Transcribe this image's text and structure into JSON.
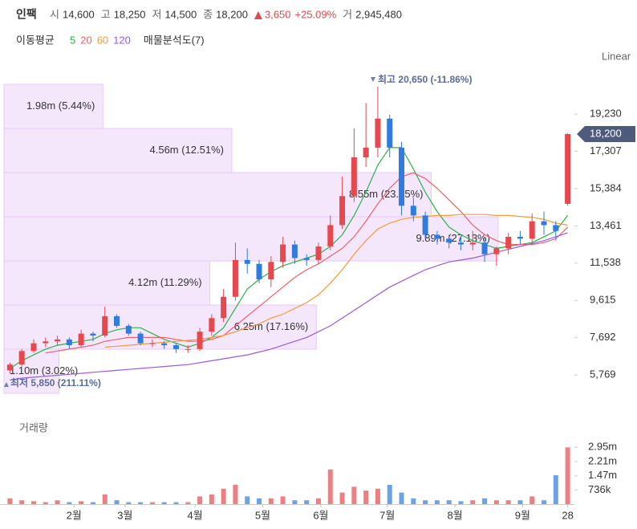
{
  "chart_data": {
    "type": "candlestick",
    "title": "인팩",
    "quote": [
      {
        "label": "시",
        "value": "14,600"
      },
      {
        "label": "고",
        "value": "18,250"
      },
      {
        "label": "저",
        "value": "14,500"
      },
      {
        "label": "종",
        "value": "18,200"
      }
    ],
    "change": "3,650",
    "change_pct": "+25.09%",
    "volume_label": "거",
    "volume_total": "2,945,480",
    "ma_label": "이동평균",
    "profile_label": "매물분석도(7)",
    "scale": "Linear",
    "xlim": [
      -0.5,
      47.5
    ],
    "xticks": [
      {
        "value": 5.4,
        "label": "2월"
      },
      {
        "value": 9.7,
        "label": "3월"
      },
      {
        "value": 15.6,
        "label": "4월"
      },
      {
        "value": 21.3,
        "label": "5월"
      },
      {
        "value": 26.2,
        "label": "6월"
      },
      {
        "value": 31.8,
        "label": "7월"
      },
      {
        "value": 37.5,
        "label": "8월"
      },
      {
        "value": 43.2,
        "label": "9월"
      },
      {
        "value": 47,
        "label": "28"
      }
    ],
    "ylim": [
      4816,
      21186
    ],
    "yticks": [
      {
        "value": 5769,
        "label": "5,769"
      },
      {
        "value": 7692,
        "label": "7,692"
      },
      {
        "value": 9615,
        "label": "9,615"
      },
      {
        "value": 11538,
        "label": "11,538"
      },
      {
        "value": 13461,
        "label": "13,461"
      },
      {
        "value": 15384,
        "label": "15,384"
      },
      {
        "value": 17307,
        "label": "17,307"
      },
      {
        "value": 19230,
        "label": "19,230"
      }
    ],
    "up_color": "#e5484d",
    "down_color": "#2f7be0",
    "open": [
      6000,
      6300,
      7000,
      7400,
      7500,
      7600,
      7300,
      7900,
      7800,
      8800,
      8300,
      7900,
      7400,
      7400,
      7300,
      7100,
      7100,
      8000,
      8700,
      9800,
      11700,
      11500,
      10700,
      11600,
      12500,
      11800,
      11700,
      12400,
      13500,
      15000,
      17000,
      17500,
      19000,
      17500,
      14500,
      14000,
      13000,
      12800,
      12600,
      12500,
      12600,
      12000,
      12300,
      12900,
      12800,
      13700,
      13500,
      14600
    ],
    "high": [
      6400,
      7100,
      7600,
      7700,
      7800,
      7700,
      8100,
      8000,
      9300,
      8900,
      8400,
      8000,
      7600,
      7500,
      7400,
      7300,
      8200,
      8900,
      10200,
      12600,
      12300,
      11700,
      11900,
      12900,
      12700,
      12000,
      12600,
      14000,
      16000,
      18500,
      19800,
      20650,
      19200,
      17800,
      14900,
      14200,
      13200,
      13000,
      12900,
      13200,
      12900,
      12400,
      13100,
      13200,
      14100,
      14200,
      13700,
      18250
    ],
    "low": [
      5850,
      6200,
      6900,
      7200,
      7300,
      7100,
      7200,
      7500,
      7700,
      8200,
      7800,
      7300,
      7200,
      7100,
      6900,
      6900,
      7000,
      7800,
      8500,
      9600,
      11000,
      10500,
      10300,
      11300,
      11500,
      11400,
      11500,
      12200,
      13300,
      14700,
      16500,
      17000,
      17000,
      14000,
      13700,
      12800,
      12500,
      12300,
      12200,
      12200,
      11600,
      11400,
      12000,
      12500,
      12500,
      13000,
      12700,
      14500
    ],
    "close": [
      6300,
      7000,
      7400,
      7500,
      7600,
      7300,
      7900,
      7800,
      8800,
      8300,
      7900,
      7400,
      7400,
      7300,
      7100,
      7100,
      8000,
      8700,
      9800,
      11700,
      11500,
      10700,
      11600,
      12500,
      11800,
      11700,
      12400,
      13500,
      15000,
      17000,
      17500,
      19000,
      17500,
      14500,
      14000,
      13000,
      12800,
      12600,
      12500,
      12600,
      12000,
      12300,
      12900,
      12800,
      13700,
      13500,
      13200,
      18200
    ],
    "ma": [
      {
        "name": "5",
        "color": "#2bb24c",
        "values": [
          6100,
          6500,
          6800,
          7100,
          7300,
          7400,
          7500,
          7600,
          7900,
          8100,
          8200,
          8200,
          7900,
          7600,
          7400,
          7200,
          7400,
          7700,
          8200,
          9200,
          10200,
          10700,
          11100,
          11400,
          11600,
          11800,
          12000,
          12400,
          13000,
          14000,
          15200,
          16600,
          17500,
          17500,
          16400,
          15200,
          14200,
          13400,
          13000,
          12700,
          12500,
          12300,
          12400,
          12500,
          12600,
          12900,
          13200,
          14000
        ]
      },
      {
        "name": "20",
        "color": "#f0606a",
        "values": [
          null,
          null,
          null,
          6900,
          7000,
          7100,
          7200,
          7300,
          7500,
          7600,
          7700,
          7700,
          7700,
          7700,
          7600,
          7500,
          7500,
          7600,
          7800,
          8300,
          8800,
          9300,
          9800,
          10300,
          10800,
          11200,
          11500,
          11900,
          12300,
          12900,
          13700,
          14600,
          15400,
          16000,
          16200,
          15900,
          15400,
          14800,
          14200,
          13500,
          13000,
          12700,
          12500,
          12500,
          12500,
          12600,
          12800,
          13400
        ]
      },
      {
        "name": "60",
        "color": "#f39a3c",
        "values": [
          null,
          null,
          null,
          null,
          null,
          null,
          null,
          null,
          7200,
          7250,
          7300,
          7350,
          7400,
          7450,
          7500,
          7550,
          7600,
          7700,
          7800,
          8000,
          8200,
          8400,
          8700,
          8900,
          9200,
          9500,
          9900,
          10500,
          11200,
          12000,
          12700,
          13300,
          13600,
          13800,
          13900,
          13950,
          14000,
          14000,
          14050,
          14050,
          14050,
          14000,
          14000,
          13950,
          13900,
          13800,
          13600,
          13500
        ]
      },
      {
        "name": "120",
        "color": "#9b59e0",
        "values": [
          5500,
          5600,
          5650,
          5700,
          5750,
          5800,
          5850,
          5900,
          5950,
          6000,
          6050,
          6100,
          6150,
          6200,
          6250,
          6300,
          6400,
          6500,
          6600,
          6700,
          6800,
          6950,
          7100,
          7300,
          7500,
          7700,
          8000,
          8300,
          8700,
          9100,
          9500,
          9900,
          10300,
          10600,
          10900,
          11200,
          11400,
          11600,
          11700,
          11800,
          11950,
          12100,
          12250,
          12400,
          12550,
          12700,
          12900,
          13100
        ]
      }
    ],
    "last_price": {
      "value": 18200,
      "label": "18,200"
    },
    "high_note": "최고 20,650 (-11.86%)",
    "low_note": "최저 5,850 (211.11%)",
    "profile": {
      "bins": [
        4816,
        7095,
        9374,
        11653,
        13932,
        16211,
        18490,
        20769
      ],
      "volumes": [
        1.1,
        6.25,
        4.12,
        9.89,
        8.55,
        4.56,
        1.98
      ],
      "value_labels": [
        "1.10m (3.02%)",
        "6.25m (17.16%)",
        "4.12m (11.29%)",
        "9.89m (27.13%)",
        "8.55m (23.45%)",
        "4.56m (12.51%)",
        "1.98m (5.44%)"
      ],
      "color": "#e9c9f7",
      "xlim": [
        0,
        11.4
      ]
    },
    "volume": {
      "title": "거래량",
      "ylim": [
        0,
        4500000
      ],
      "yticks": [
        {
          "value": 736000,
          "label": "736k"
        },
        {
          "value": 1470000,
          "label": "1.47m"
        },
        {
          "value": 2210000,
          "label": "2.21m"
        },
        {
          "value": 2950000,
          "label": "2.95m"
        }
      ],
      "values": [
        300000,
        200000,
        150000,
        100000,
        200000,
        100000,
        150000,
        100000,
        500000,
        200000,
        100000,
        100000,
        100000,
        100000,
        100000,
        100000,
        400000,
        500000,
        800000,
        1000000,
        400000,
        300000,
        300000,
        400000,
        200000,
        200000,
        300000,
        1800000,
        600000,
        900000,
        700000,
        800000,
        1000000,
        600000,
        300000,
        200000,
        200000,
        200000,
        150000,
        200000,
        300000,
        200000,
        200000,
        200000,
        400000,
        200000,
        1500000,
        2945480
      ]
    }
  }
}
